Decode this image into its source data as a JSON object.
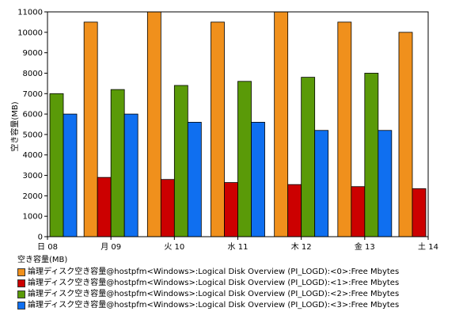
{
  "chart_data": {
    "type": "bar",
    "title": "",
    "xlabel": "",
    "ylabel": "空き容量(MB)",
    "ylim": [
      0,
      11000
    ],
    "yticks": [
      0,
      1000,
      2000,
      3000,
      4000,
      5000,
      6000,
      7000,
      8000,
      9000,
      10000,
      11000
    ],
    "grid": false,
    "legend_position": "bottom",
    "categories": [
      "日 08",
      "月 09",
      "火 10",
      "水 11",
      "木 12",
      "金 13",
      "土 14"
    ],
    "series": [
      {
        "name": "論理ディスク空き容量@hostpfm<Windows>:Logical Disk Overview (PI_LOGD):<0>:Free Mbytes",
        "color": "#f0901c",
        "values": [
          null,
          10500,
          11000,
          10500,
          11000,
          10500,
          10000
        ]
      },
      {
        "name": "論理ディスク空き容量@hostpfm<Windows>:Logical Disk Overview (PI_LOGD):<1>:Free Mbytes",
        "color": "#cc0000",
        "values": [
          null,
          2900,
          2800,
          2650,
          2550,
          2450,
          2350
        ]
      },
      {
        "name": "論理ディスク空き容量@hostpfm<Windows>:Logical Disk Overview (PI_LOGD):<2>:Free Mbytes",
        "color": "#5a9a08",
        "values": [
          7000,
          7200,
          7400,
          7600,
          7800,
          8000,
          null
        ]
      },
      {
        "name": "論理ディスク空き容量@hostpfm<Windows>:Logical Disk Overview (PI_LOGD):<3>:Free Mbytes",
        "color": "#0f6ff0",
        "values": [
          6000,
          6000,
          5600,
          5600,
          5200,
          5200,
          null
        ]
      }
    ],
    "legend_title": "空き容量(MB)"
  }
}
